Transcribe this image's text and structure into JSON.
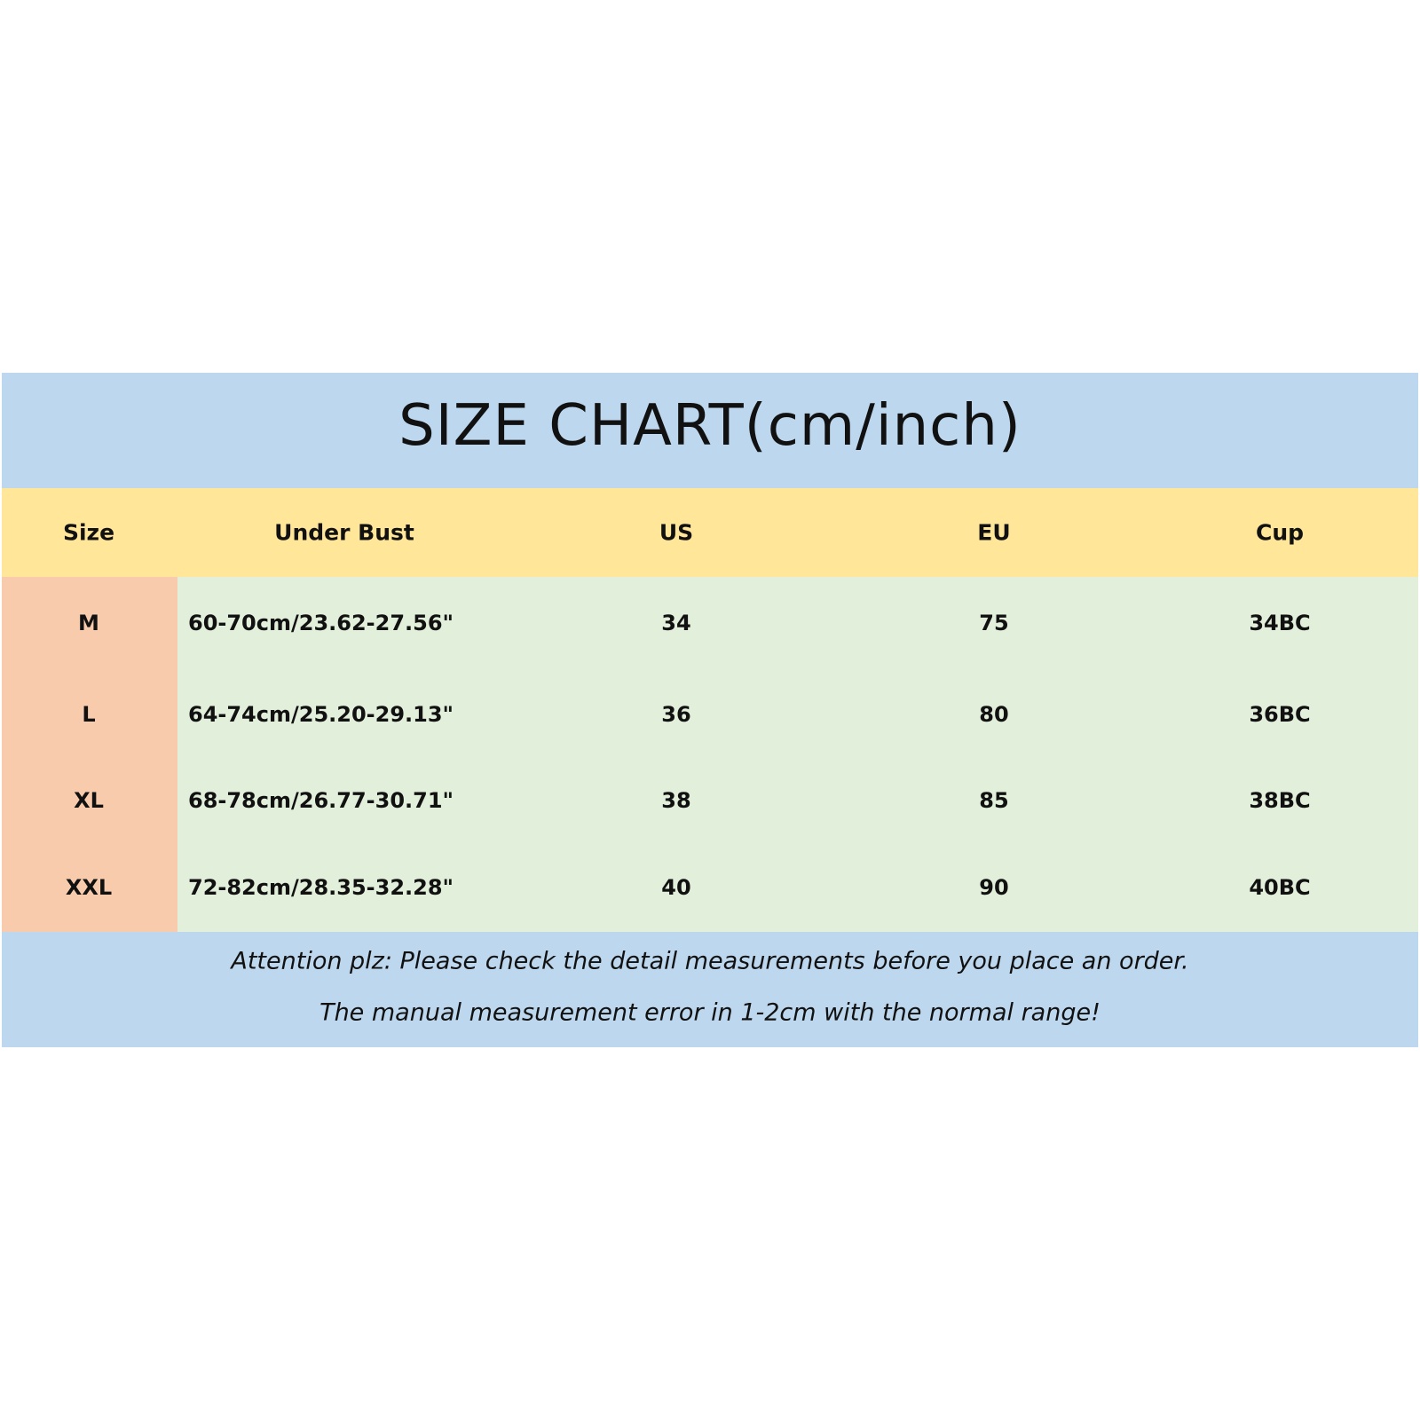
{
  "title": "SIZE CHART(cm/inch)",
  "colors": {
    "title_band": "#bdd7ee",
    "header_band": "#ffe699",
    "size_column": "#f8cbad",
    "body": "#e2efda",
    "footer_band": "#bdd7ee"
  },
  "table": {
    "headers": [
      "Size",
      "Under Bust",
      "US",
      "EU",
      "Cup"
    ],
    "rows": [
      [
        "M",
        "60-70cm/23.62-27.56\"",
        "34",
        "75",
        "34BC"
      ],
      [
        "L",
        "64-74cm/25.20-29.13\"",
        "36",
        "80",
        "36BC"
      ],
      [
        "XL",
        "68-78cm/26.77-30.71\"",
        "38",
        "85",
        "38BC"
      ],
      [
        "XXL",
        "72-82cm/28.35-32.28\"",
        "40",
        "90",
        "40BC"
      ]
    ]
  },
  "notes": [
    "Attention plz:  Please check the detail measurements before you place an order.",
    "The manual measurement error in 1-2cm with the normal range!"
  ]
}
